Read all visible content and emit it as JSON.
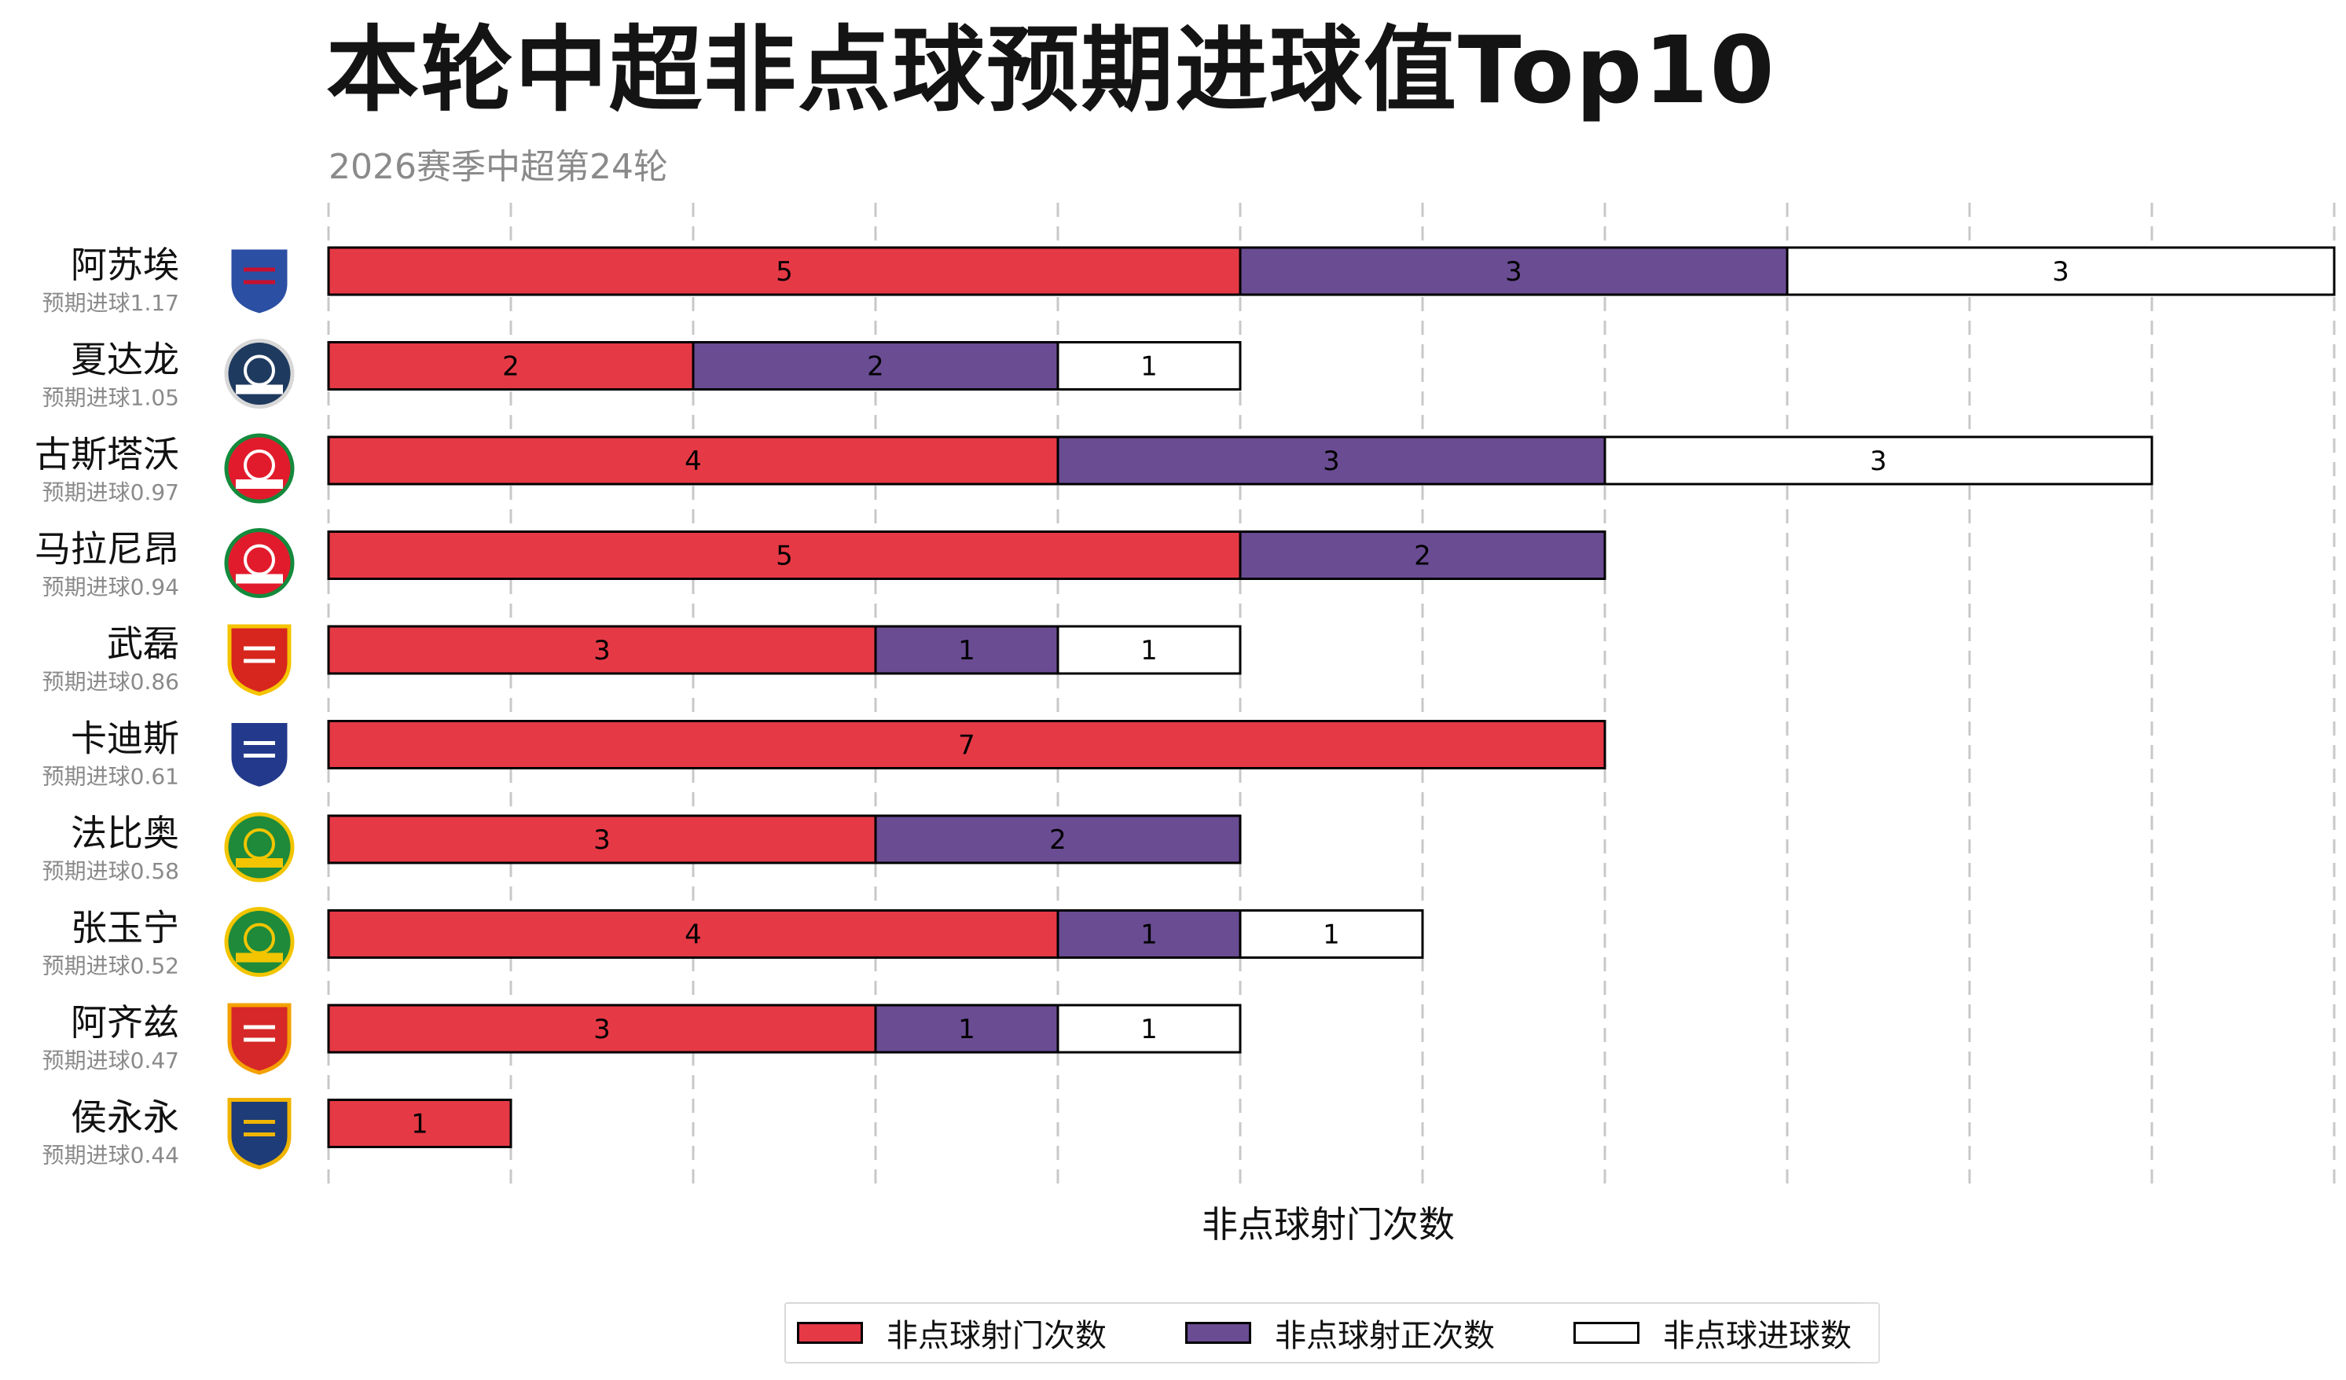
{
  "title": "本轮中超非点球预期进球值Top10",
  "subtitle": "2026赛季中超第24轮",
  "colors": {
    "shots": "#e63946",
    "on_target": "#6a4c93",
    "goals": "#ffffff",
    "grid": "#c8c8c8"
  },
  "chart_data": {
    "type": "bar",
    "orientation": "horizontal",
    "stacked": true,
    "xlabel": "非点球射门次数",
    "xlim": [
      0,
      11
    ],
    "grid": true,
    "legend_position": "bottom",
    "categories": [
      "阿苏埃",
      "夏达龙",
      "古斯塔沃",
      "马拉尼昂",
      "武磊",
      "卡迪斯",
      "法比奥",
      "张玉宁",
      "阿齐兹",
      "侯永永"
    ],
    "xg_labels": [
      "预期进球1.17",
      "预期进球1.05",
      "预期进球0.97",
      "预期进球0.94",
      "预期进球0.86",
      "预期进球0.61",
      "预期进球0.58",
      "预期进球0.52",
      "预期进球0.47",
      "预期进球0.44"
    ],
    "team_logos": [
      "shanghai-shenhua-logo",
      "meizhou-hakka-logo",
      "henan-logo",
      "henan-logo",
      "shanghai-port-logo",
      "tianjin-jinmen-tiger-logo",
      "beijing-guoan-logo",
      "beijing-guoan-logo",
      "cangzhou-mighty-lions-logo",
      "yunnan-yukun-logo"
    ],
    "series": [
      {
        "name": "非点球射门次数",
        "values": [
          5,
          2,
          4,
          5,
          3,
          7,
          3,
          4,
          3,
          1
        ]
      },
      {
        "name": "非点球射正次数",
        "values": [
          3,
          2,
          3,
          2,
          1,
          0,
          2,
          1,
          1,
          0
        ]
      },
      {
        "name": "非点球进球数",
        "values": [
          3,
          1,
          3,
          0,
          1,
          0,
          0,
          1,
          1,
          0
        ]
      }
    ]
  },
  "legend": {
    "items": [
      "非点球射门次数",
      "非点球射正次数",
      "非点球进球数"
    ]
  }
}
